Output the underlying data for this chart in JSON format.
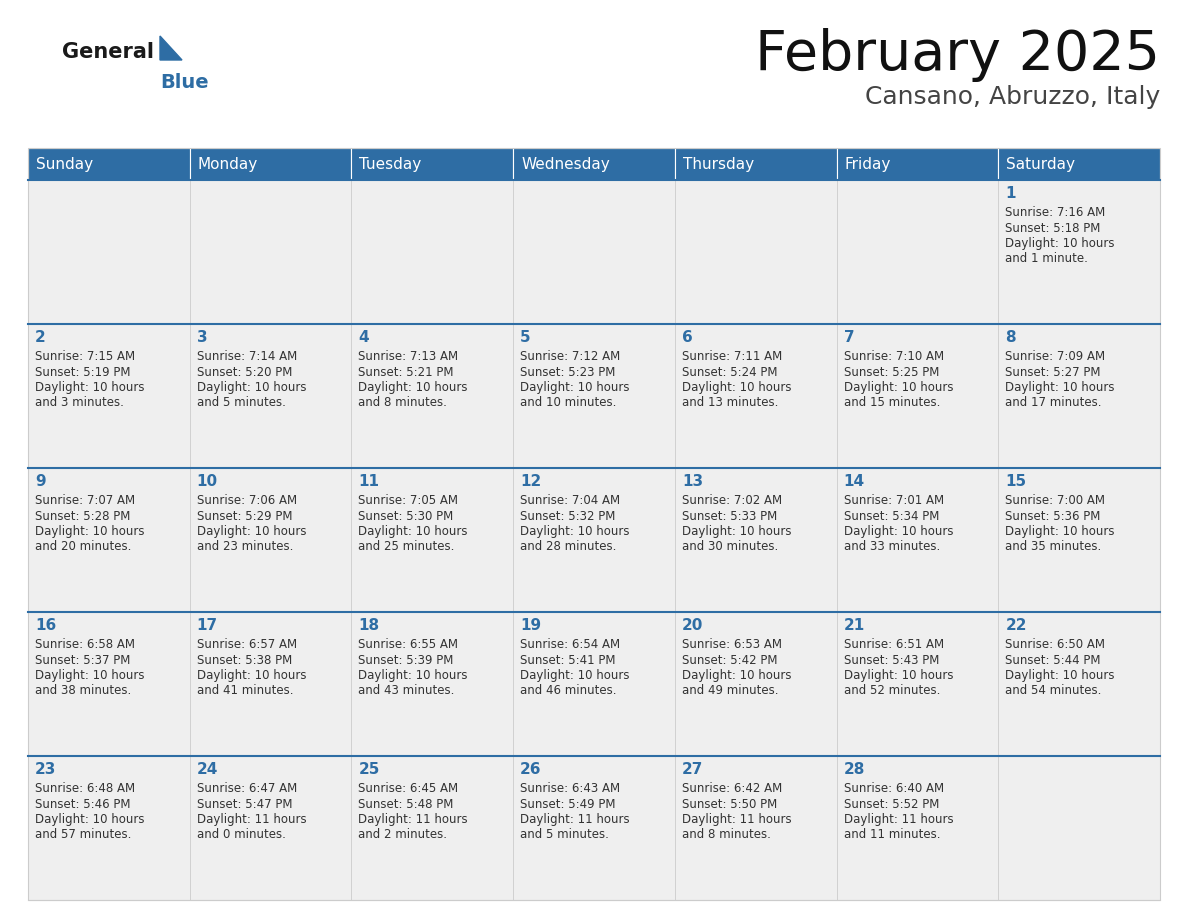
{
  "title": "February 2025",
  "subtitle": "Cansano, Abruzzo, Italy",
  "header_color": "#2E6DA4",
  "header_text_color": "#FFFFFF",
  "background_color": "#FFFFFF",
  "cell_bg_even": "#EFEFEF",
  "cell_bg_odd": "#FFFFFF",
  "day_number_color": "#2E6DA4",
  "text_color": "#333333",
  "border_color": "#2E6DA4",
  "grid_color": "#CCCCCC",
  "days_of_week": [
    "Sunday",
    "Monday",
    "Tuesday",
    "Wednesday",
    "Thursday",
    "Friday",
    "Saturday"
  ],
  "weeks": [
    [
      {
        "day": "",
        "info": ""
      },
      {
        "day": "",
        "info": ""
      },
      {
        "day": "",
        "info": ""
      },
      {
        "day": "",
        "info": ""
      },
      {
        "day": "",
        "info": ""
      },
      {
        "day": "",
        "info": ""
      },
      {
        "day": "1",
        "info": "Sunrise: 7:16 AM\nSunset: 5:18 PM\nDaylight: 10 hours\nand 1 minute."
      }
    ],
    [
      {
        "day": "2",
        "info": "Sunrise: 7:15 AM\nSunset: 5:19 PM\nDaylight: 10 hours\nand 3 minutes."
      },
      {
        "day": "3",
        "info": "Sunrise: 7:14 AM\nSunset: 5:20 PM\nDaylight: 10 hours\nand 5 minutes."
      },
      {
        "day": "4",
        "info": "Sunrise: 7:13 AM\nSunset: 5:21 PM\nDaylight: 10 hours\nand 8 minutes."
      },
      {
        "day": "5",
        "info": "Sunrise: 7:12 AM\nSunset: 5:23 PM\nDaylight: 10 hours\nand 10 minutes."
      },
      {
        "day": "6",
        "info": "Sunrise: 7:11 AM\nSunset: 5:24 PM\nDaylight: 10 hours\nand 13 minutes."
      },
      {
        "day": "7",
        "info": "Sunrise: 7:10 AM\nSunset: 5:25 PM\nDaylight: 10 hours\nand 15 minutes."
      },
      {
        "day": "8",
        "info": "Sunrise: 7:09 AM\nSunset: 5:27 PM\nDaylight: 10 hours\nand 17 minutes."
      }
    ],
    [
      {
        "day": "9",
        "info": "Sunrise: 7:07 AM\nSunset: 5:28 PM\nDaylight: 10 hours\nand 20 minutes."
      },
      {
        "day": "10",
        "info": "Sunrise: 7:06 AM\nSunset: 5:29 PM\nDaylight: 10 hours\nand 23 minutes."
      },
      {
        "day": "11",
        "info": "Sunrise: 7:05 AM\nSunset: 5:30 PM\nDaylight: 10 hours\nand 25 minutes."
      },
      {
        "day": "12",
        "info": "Sunrise: 7:04 AM\nSunset: 5:32 PM\nDaylight: 10 hours\nand 28 minutes."
      },
      {
        "day": "13",
        "info": "Sunrise: 7:02 AM\nSunset: 5:33 PM\nDaylight: 10 hours\nand 30 minutes."
      },
      {
        "day": "14",
        "info": "Sunrise: 7:01 AM\nSunset: 5:34 PM\nDaylight: 10 hours\nand 33 minutes."
      },
      {
        "day": "15",
        "info": "Sunrise: 7:00 AM\nSunset: 5:36 PM\nDaylight: 10 hours\nand 35 minutes."
      }
    ],
    [
      {
        "day": "16",
        "info": "Sunrise: 6:58 AM\nSunset: 5:37 PM\nDaylight: 10 hours\nand 38 minutes."
      },
      {
        "day": "17",
        "info": "Sunrise: 6:57 AM\nSunset: 5:38 PM\nDaylight: 10 hours\nand 41 minutes."
      },
      {
        "day": "18",
        "info": "Sunrise: 6:55 AM\nSunset: 5:39 PM\nDaylight: 10 hours\nand 43 minutes."
      },
      {
        "day": "19",
        "info": "Sunrise: 6:54 AM\nSunset: 5:41 PM\nDaylight: 10 hours\nand 46 minutes."
      },
      {
        "day": "20",
        "info": "Sunrise: 6:53 AM\nSunset: 5:42 PM\nDaylight: 10 hours\nand 49 minutes."
      },
      {
        "day": "21",
        "info": "Sunrise: 6:51 AM\nSunset: 5:43 PM\nDaylight: 10 hours\nand 52 minutes."
      },
      {
        "day": "22",
        "info": "Sunrise: 6:50 AM\nSunset: 5:44 PM\nDaylight: 10 hours\nand 54 minutes."
      }
    ],
    [
      {
        "day": "23",
        "info": "Sunrise: 6:48 AM\nSunset: 5:46 PM\nDaylight: 10 hours\nand 57 minutes."
      },
      {
        "day": "24",
        "info": "Sunrise: 6:47 AM\nSunset: 5:47 PM\nDaylight: 11 hours\nand 0 minutes."
      },
      {
        "day": "25",
        "info": "Sunrise: 6:45 AM\nSunset: 5:48 PM\nDaylight: 11 hours\nand 2 minutes."
      },
      {
        "day": "26",
        "info": "Sunrise: 6:43 AM\nSunset: 5:49 PM\nDaylight: 11 hours\nand 5 minutes."
      },
      {
        "day": "27",
        "info": "Sunrise: 6:42 AM\nSunset: 5:50 PM\nDaylight: 11 hours\nand 8 minutes."
      },
      {
        "day": "28",
        "info": "Sunrise: 6:40 AM\nSunset: 5:52 PM\nDaylight: 11 hours\nand 11 minutes."
      },
      {
        "day": "",
        "info": ""
      }
    ]
  ],
  "logo_general_color": "#1a1a1a",
  "logo_blue_color": "#2E6DA4",
  "logo_triangle_color": "#2E6DA4"
}
